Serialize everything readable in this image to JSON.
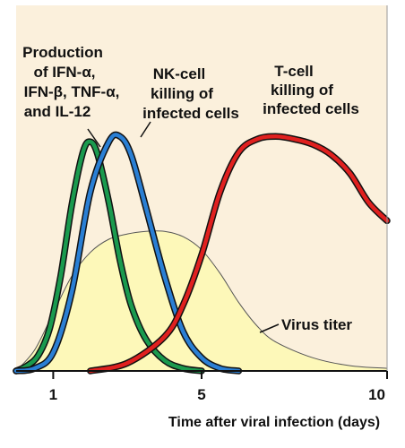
{
  "chart_data": {
    "type": "area",
    "title": "",
    "xlabel": "Time after viral infection (days)",
    "ylabel": "",
    "xlim": [
      0,
      10
    ],
    "ylim": [
      0,
      1
    ],
    "grid": false,
    "legend": "none",
    "x_ticks": [
      1,
      5,
      10
    ],
    "x_tick_labels": [
      "1",
      "5",
      "10"
    ],
    "series": [
      {
        "name": "Virus titer",
        "kind": "area",
        "color": "#fdf8b9",
        "stroke": "#555555",
        "x": [
          0,
          0.5,
          1,
          1.5,
          2,
          2.5,
          3,
          3.5,
          4,
          4.5,
          5,
          5.5,
          6,
          6.5,
          7,
          8,
          9,
          10
        ],
        "y": [
          0,
          0.08,
          0.22,
          0.36,
          0.45,
          0.5,
          0.52,
          0.53,
          0.53,
          0.51,
          0.46,
          0.37,
          0.26,
          0.17,
          0.11,
          0.05,
          0.02,
          0.01
        ]
      },
      {
        "name": "Production of IFN-α, IFN-β, TNF-α, and IL-12",
        "kind": "line",
        "color": "#1a9a4e",
        "x": [
          0,
          0.3,
          0.6,
          0.9,
          1.2,
          1.5,
          1.8,
          2.0,
          2.2,
          2.5,
          2.8,
          3.1,
          3.5,
          4.0,
          4.5,
          5.0
        ],
        "y": [
          0,
          0.02,
          0.06,
          0.16,
          0.36,
          0.63,
          0.83,
          0.87,
          0.82,
          0.64,
          0.42,
          0.25,
          0.12,
          0.04,
          0.01,
          0
        ]
      },
      {
        "name": "NK-cell killing of infected cells",
        "kind": "line",
        "color": "#2a7fd4",
        "x": [
          0,
          0.5,
          1.0,
          1.5,
          2.0,
          2.5,
          2.8,
          3.1,
          3.5,
          4.0,
          4.5,
          5.0,
          5.5,
          6.0
        ],
        "y": [
          0,
          0.01,
          0.07,
          0.3,
          0.68,
          0.87,
          0.89,
          0.82,
          0.62,
          0.36,
          0.15,
          0.05,
          0.01,
          0
        ]
      },
      {
        "name": "T-cell killing of infected cells",
        "kind": "line",
        "color": "#e0201f",
        "x": [
          2.0,
          3.0,
          4.0,
          4.5,
          5.0,
          5.5,
          6.0,
          6.5,
          7.0,
          7.5,
          8.0,
          8.5,
          9.0,
          9.5,
          10.0
        ],
        "y": [
          0,
          0.03,
          0.13,
          0.25,
          0.44,
          0.68,
          0.83,
          0.88,
          0.89,
          0.88,
          0.86,
          0.82,
          0.75,
          0.64,
          0.57
        ]
      }
    ],
    "annotations": {
      "cytokines": [
        "Production",
        "of IFN-α,",
        "IFN-β, TNF-α,",
        "and IL-12"
      ],
      "nk": [
        "NK-cell",
        "killing of",
        "infected cells"
      ],
      "tcell": [
        "T-cell",
        "killing of",
        "infected cells"
      ],
      "virus": "Virus titer"
    }
  }
}
